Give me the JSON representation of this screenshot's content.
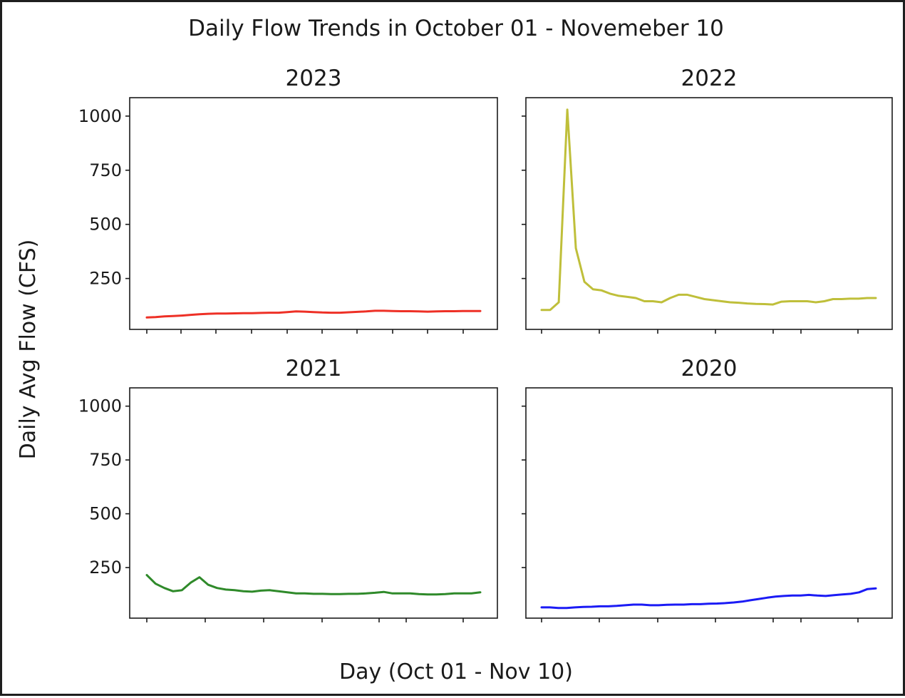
{
  "chart_data": {
    "type": "line",
    "title": "Daily Flow Trends in October 01 - Novemeber 10",
    "xlabel": "Day (Oct 01 - Nov 10)",
    "ylabel": "Daily Avg Flow (CFS)",
    "ylim": [
      15,
      1085
    ],
    "yticks": [
      250,
      500,
      750,
      1000
    ],
    "x_ticks_labeled": false,
    "x_tick_count": 10,
    "sharey": true,
    "grid": false,
    "legend": "none",
    "subplots": [
      {
        "title": "2023",
        "color": "#ee3026",
        "x": [
          1,
          2,
          3,
          4,
          5,
          6,
          7,
          8,
          9,
          10,
          11,
          12,
          13,
          14,
          15,
          16,
          17,
          18,
          19,
          20,
          21,
          22,
          23,
          24,
          25,
          26,
          27,
          28,
          29,
          30,
          31,
          32,
          33,
          34,
          35,
          36,
          37,
          38,
          39
        ],
        "values": [
          70,
          72,
          75,
          77,
          79,
          82,
          85,
          87,
          88,
          88,
          89,
          90,
          90,
          91,
          92,
          92,
          95,
          98,
          97,
          95,
          93,
          92,
          92,
          94,
          96,
          98,
          101,
          101,
          100,
          99,
          99,
          98,
          97,
          98,
          99,
          99,
          100,
          100,
          100
        ]
      },
      {
        "title": "2022",
        "color": "#bfbf3a",
        "x": [
          1,
          2,
          3,
          4,
          5,
          6,
          7,
          8,
          9,
          10,
          11,
          12,
          13,
          14,
          15,
          16,
          17,
          18,
          19,
          20,
          21,
          22,
          23,
          24,
          25,
          26,
          27,
          28,
          29,
          30,
          31,
          32,
          33,
          34,
          35,
          36,
          37,
          38,
          39,
          40
        ],
        "values": [
          105,
          105,
          140,
          1030,
          390,
          235,
          200,
          195,
          180,
          170,
          165,
          160,
          145,
          145,
          140,
          160,
          175,
          175,
          165,
          155,
          150,
          145,
          140,
          138,
          135,
          133,
          132,
          130,
          143,
          145,
          145,
          145,
          140,
          145,
          155,
          155,
          157,
          157,
          160,
          160
        ]
      },
      {
        "title": "2021",
        "color": "#2f8a2a",
        "x": [
          1,
          2,
          3,
          4,
          5,
          6,
          7,
          8,
          9,
          10,
          11,
          12,
          13,
          14,
          15,
          16,
          17,
          18,
          19,
          20,
          21,
          22,
          23,
          24,
          25,
          26,
          27,
          28,
          29,
          30,
          31,
          32,
          33,
          34,
          35,
          36,
          37,
          38,
          39
        ],
        "values": [
          215,
          175,
          155,
          140,
          145,
          180,
          205,
          170,
          155,
          148,
          145,
          140,
          138,
          143,
          145,
          140,
          135,
          130,
          130,
          128,
          128,
          127,
          127,
          128,
          128,
          130,
          133,
          137,
          130,
          130,
          130,
          127,
          125,
          125,
          127,
          130,
          130,
          130,
          135
        ]
      },
      {
        "title": "2020",
        "color": "#1b1bf5",
        "x": [
          1,
          2,
          3,
          4,
          5,
          6,
          7,
          8,
          9,
          10,
          11,
          12,
          13,
          14,
          15,
          16,
          17,
          18,
          19,
          20,
          21,
          22,
          23,
          24,
          25,
          26,
          27,
          28,
          29,
          30,
          31,
          32,
          33,
          34,
          35,
          36,
          37,
          38,
          39,
          40,
          41
        ],
        "values": [
          65,
          65,
          62,
          62,
          65,
          67,
          68,
          70,
          70,
          72,
          75,
          78,
          78,
          75,
          75,
          77,
          78,
          78,
          80,
          80,
          82,
          83,
          85,
          88,
          92,
          98,
          104,
          110,
          115,
          118,
          120,
          120,
          123,
          120,
          118,
          122,
          125,
          128,
          135,
          150,
          153
        ]
      }
    ]
  }
}
